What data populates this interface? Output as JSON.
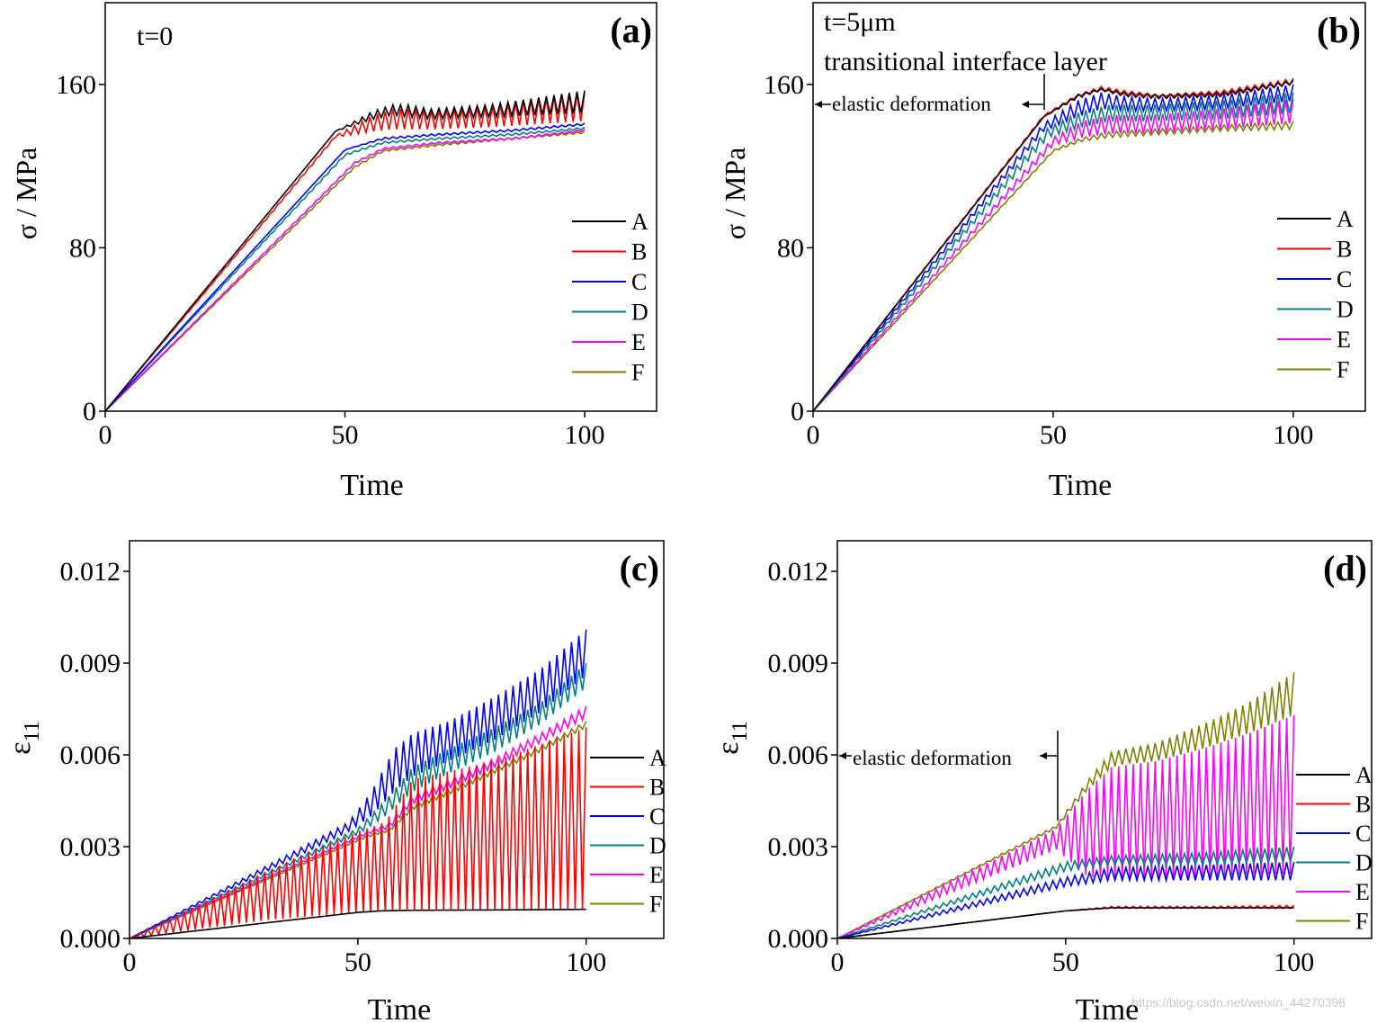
{
  "figure": {
    "watermark": "https://blog.csdn.net/weixin_44270398"
  },
  "colors": {
    "A": "#000000",
    "B": "#ff0000",
    "C": "#0000ff",
    "D": "#008080",
    "E": "#ff00ff",
    "F": "#808000"
  },
  "chart_data": [
    {
      "id": "a",
      "type": "line",
      "panel_label": "(a)",
      "annotations": [
        "t=0"
      ],
      "xlabel": "Time",
      "ylabel": "σ / MPa",
      "xlim": [
        0,
        115
      ],
      "ylim": [
        0,
        200
      ],
      "xticks": [
        0,
        50,
        100
      ],
      "yticks": [
        0,
        80,
        160
      ],
      "ytick_labels": [
        "0",
        "80",
        "160"
      ],
      "legend_position": "right",
      "series": [
        {
          "name": "A",
          "x": [
            0,
            48,
            56,
            60,
            63,
            68,
            80,
            100
          ],
          "upper": [
            0,
            137,
            147,
            150,
            150,
            148,
            150,
            157
          ],
          "lower": [
            0,
            137,
            143,
            145,
            144,
            143,
            144,
            146
          ]
        },
        {
          "name": "B",
          "x": [
            0,
            48,
            56,
            60,
            63,
            68,
            80,
            100
          ],
          "upper": [
            0,
            135,
            145,
            148,
            148,
            147,
            149,
            156
          ],
          "lower": [
            0,
            134,
            137,
            138,
            138,
            138,
            139,
            142
          ]
        },
        {
          "name": "C",
          "x": [
            0,
            50,
            58,
            70,
            85,
            100
          ],
          "upper": [
            0,
            128,
            134,
            136,
            138,
            141
          ],
          "lower": [
            0,
            128,
            133,
            135,
            137,
            140
          ]
        },
        {
          "name": "D",
          "x": [
            0,
            50,
            58,
            70,
            85,
            100
          ],
          "upper": [
            0,
            126,
            132,
            134,
            136,
            139
          ],
          "lower": [
            0,
            125,
            131,
            133,
            135,
            138
          ]
        },
        {
          "name": "E",
          "x": [
            0,
            52,
            58,
            70,
            85,
            100
          ],
          "upper": [
            0,
            122,
            129,
            132,
            134,
            138
          ],
          "lower": [
            0,
            121,
            128,
            131,
            133,
            137
          ]
        },
        {
          "name": "F",
          "x": [
            0,
            52,
            58,
            70,
            85,
            100
          ],
          "upper": [
            0,
            120,
            128,
            131,
            134,
            137
          ],
          "lower": [
            0,
            119,
            127,
            130,
            133,
            136
          ]
        }
      ]
    },
    {
      "id": "b",
      "type": "line",
      "panel_label": "(b)",
      "annotations": [
        "t=5μm",
        "transitional interface layer",
        "elastic deformation"
      ],
      "xlabel": "Time",
      "ylabel": "σ / MPa",
      "xlim": [
        0,
        115
      ],
      "ylim": [
        0,
        200
      ],
      "xticks": [
        0,
        50,
        100
      ],
      "yticks": [
        0,
        80,
        160
      ],
      "ytick_labels": [
        "0",
        "80",
        "160"
      ],
      "legend_position": "right",
      "series": [
        {
          "name": "A",
          "x": [
            0,
            48,
            55,
            60,
            65,
            72,
            85,
            100
          ],
          "upper": [
            0,
            144,
            155,
            158,
            156,
            155,
            156,
            162
          ],
          "lower": [
            0,
            144,
            153,
            157,
            154,
            153,
            154,
            160
          ]
        },
        {
          "name": "B",
          "x": [
            0,
            48,
            55,
            60,
            65,
            72,
            85,
            100
          ],
          "upper": [
            0,
            145,
            155,
            159,
            157,
            155,
            157,
            163
          ],
          "lower": [
            0,
            144,
            154,
            157,
            155,
            154,
            155,
            160
          ]
        },
        {
          "name": "C",
          "x": [
            0,
            48,
            55,
            60,
            65,
            72,
            85,
            100
          ],
          "upper": [
            0,
            141,
            152,
            156,
            154,
            153,
            155,
            160
          ],
          "lower": [
            0,
            137,
            144,
            148,
            147,
            147,
            148,
            152
          ]
        },
        {
          "name": "D",
          "x": [
            0,
            49,
            56,
            62,
            70,
            85,
            100
          ],
          "upper": [
            0,
            139,
            147,
            150,
            150,
            152,
            156
          ],
          "lower": [
            0,
            134,
            139,
            142,
            142,
            143,
            146
          ]
        },
        {
          "name": "E",
          "x": [
            0,
            50,
            56,
            62,
            70,
            85,
            100
          ],
          "upper": [
            0,
            134,
            142,
            145,
            145,
            148,
            153
          ],
          "lower": [
            0,
            130,
            134,
            136,
            136,
            138,
            141
          ]
        },
        {
          "name": "F",
          "x": [
            0,
            50,
            56,
            62,
            70,
            85,
            100
          ],
          "upper": [
            0,
            128,
            134,
            137,
            138,
            140,
            142
          ],
          "lower": [
            0,
            127,
            132,
            134,
            135,
            137,
            138
          ]
        }
      ]
    },
    {
      "id": "c",
      "type": "line",
      "panel_label": "(c)",
      "annotations": [],
      "xlabel": "Time",
      "ylabel": "ε11",
      "xlim": [
        0,
        117
      ],
      "ylim": [
        0,
        0.013
      ],
      "xticks": [
        0,
        50,
        100
      ],
      "yticks": [
        0,
        0.003,
        0.006,
        0.009,
        0.012
      ],
      "ytick_labels": [
        "0.000",
        "0.003",
        "0.006",
        "0.009",
        "0.012"
      ],
      "legend_position": "right",
      "series": [
        {
          "name": "A",
          "x": [
            0,
            50,
            55,
            62,
            80,
            100
          ],
          "upper": [
            0,
            0.00085,
            0.0009,
            0.00092,
            0.00093,
            0.00095
          ],
          "lower": [
            0,
            0.00085,
            0.0009,
            0.00092,
            0.00093,
            0.00095
          ]
        },
        {
          "name": "B",
          "x": [
            0,
            30,
            50,
            56,
            62,
            80,
            100
          ],
          "upper": [
            0,
            0.0022,
            0.0035,
            0.0038,
            0.0052,
            0.0058,
            0.0069
          ],
          "lower": [
            0,
            0.0006,
            0.00085,
            0.0009,
            0.00092,
            0.00093,
            0.00095
          ]
        },
        {
          "name": "C",
          "x": [
            0,
            48,
            53,
            58,
            62,
            70,
            80,
            90,
            100
          ],
          "upper": [
            0,
            0.0038,
            0.0048,
            0.0062,
            0.0067,
            0.0071,
            0.0079,
            0.0088,
            0.0101
          ],
          "lower": [
            0,
            0.0035,
            0.004,
            0.0048,
            0.0053,
            0.0058,
            0.0065,
            0.0074,
            0.0086
          ]
        },
        {
          "name": "D",
          "x": [
            0,
            50,
            56,
            62,
            70,
            80,
            90,
            100
          ],
          "upper": [
            0,
            0.0036,
            0.0045,
            0.0056,
            0.0062,
            0.0069,
            0.0077,
            0.009
          ],
          "lower": [
            0,
            0.0034,
            0.004,
            0.0048,
            0.0054,
            0.0061,
            0.007,
            0.0082
          ]
        },
        {
          "name": "E",
          "x": [
            0,
            52,
            57,
            62,
            70,
            80,
            90,
            100
          ],
          "upper": [
            0,
            0.0035,
            0.0038,
            0.0047,
            0.0052,
            0.0059,
            0.0067,
            0.0076
          ],
          "lower": [
            0,
            0.0034,
            0.0036,
            0.0044,
            0.0049,
            0.0056,
            0.0064,
            0.0072
          ]
        },
        {
          "name": "F",
          "x": [
            0,
            52,
            57,
            62,
            70,
            80,
            90,
            100
          ],
          "upper": [
            0,
            0.0034,
            0.0036,
            0.0044,
            0.0049,
            0.0056,
            0.0063,
            0.0071
          ],
          "lower": [
            0,
            0.0033,
            0.0035,
            0.0042,
            0.0047,
            0.0054,
            0.0061,
            0.0069
          ]
        }
      ]
    },
    {
      "id": "d",
      "type": "line",
      "panel_label": "(d)",
      "annotations": [
        "elastic deformation"
      ],
      "xlabel": "Time",
      "ylabel": "ε11",
      "xlim": [
        0,
        117
      ],
      "ylim": [
        0,
        0.013
      ],
      "xticks": [
        0,
        50,
        100
      ],
      "yticks": [
        0,
        0.003,
        0.006,
        0.009,
        0.012
      ],
      "ytick_labels": [
        "0.000",
        "0.003",
        "0.006",
        "0.009",
        "0.012"
      ],
      "legend_position": "right",
      "series": [
        {
          "name": "A",
          "x": [
            0,
            50,
            60,
            80,
            100
          ],
          "upper": [
            0,
            0.0009,
            0.001,
            0.001,
            0.001
          ],
          "lower": [
            0,
            0.0009,
            0.001,
            0.001,
            0.001
          ]
        },
        {
          "name": "B",
          "x": [
            0,
            50,
            60,
            80,
            100
          ],
          "upper": [
            0,
            0.0009,
            0.00105,
            0.00105,
            0.00108
          ],
          "lower": [
            0,
            0.0009,
            0.00098,
            0.00098,
            0.00098
          ]
        },
        {
          "name": "C",
          "x": [
            0,
            50,
            60,
            80,
            100
          ],
          "upper": [
            0,
            0.002,
            0.0023,
            0.0024,
            0.0025
          ],
          "lower": [
            0,
            0.0017,
            0.0019,
            0.0019,
            0.0019
          ]
        },
        {
          "name": "D",
          "x": [
            0,
            50,
            60,
            80,
            100
          ],
          "upper": [
            0,
            0.0025,
            0.0027,
            0.0028,
            0.003
          ],
          "lower": [
            0,
            0.0022,
            0.0024,
            0.0024,
            0.0025
          ]
        },
        {
          "name": "E",
          "x": [
            0,
            48,
            55,
            60,
            70,
            80,
            90,
            100
          ],
          "upper": [
            0,
            0.0036,
            0.0049,
            0.0056,
            0.0058,
            0.0062,
            0.0067,
            0.0073
          ],
          "lower": [
            0,
            0.0029,
            0.002,
            0.002,
            0.002,
            0.002,
            0.0021,
            0.0021
          ]
        },
        {
          "name": "F",
          "x": [
            0,
            48,
            55,
            60,
            63,
            70,
            80,
            90,
            100
          ],
          "upper": [
            0,
            0.0037,
            0.0052,
            0.0061,
            0.0062,
            0.0064,
            0.007,
            0.0077,
            0.0087
          ],
          "lower": [
            0,
            0.0036,
            0.0049,
            0.0056,
            0.0057,
            0.0058,
            0.0062,
            0.0067,
            0.0073
          ]
        }
      ]
    }
  ]
}
